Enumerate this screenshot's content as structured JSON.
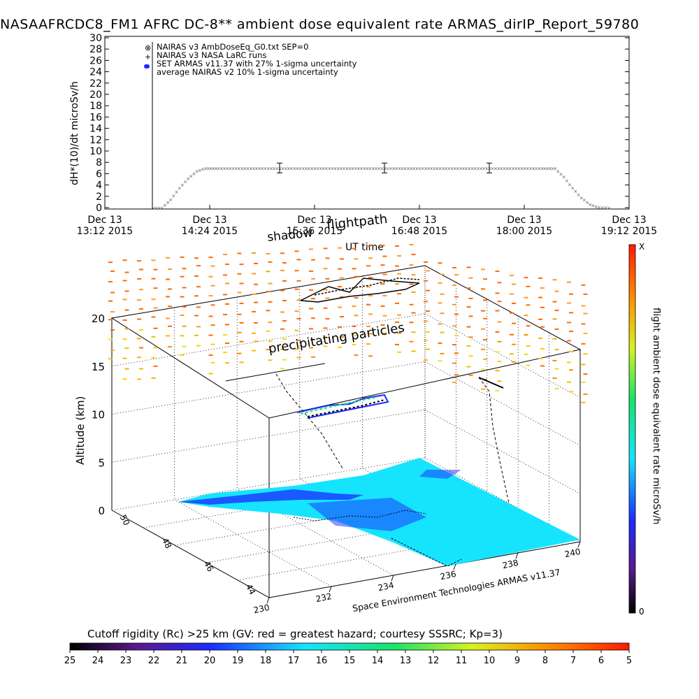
{
  "title": "NASAAFRCDC8_FM1 AFRC DC-8** ambient dose equivalent rate ARMAS_dirIP_Report_59780",
  "chart_data": [
    {
      "type": "line",
      "ylabel": "dH*(10)/dt microSv/h",
      "xlabel": "UT time",
      "ylim": [
        0,
        30
      ],
      "yticks": [
        "0",
        "2",
        "4",
        "6",
        "8",
        "10",
        "12",
        "14",
        "16",
        "18",
        "20",
        "22",
        "24",
        "26",
        "28",
        "30"
      ],
      "xticks": [
        {
          "line1": "Dec 13",
          "line2": "13:12 2015"
        },
        {
          "line1": "Dec 13",
          "line2": "14:24 2015"
        },
        {
          "line1": "Dec 13",
          "line2": "15:36 2015"
        },
        {
          "line1": "Dec 13",
          "line2": "16:48 2015"
        },
        {
          "line1": "Dec 13",
          "line2": "18:00 2015"
        },
        {
          "line1": "Dec 13",
          "line2": "19:12 2015"
        }
      ],
      "xlim_hours": [
        13.2,
        19.2
      ],
      "legend": [
        "NAIRAS v3 AmbDoseEq_G0.txt SEP=0",
        "NAIRAS v3 NASA LaRC runs",
        "SET ARMAS v11.37 with 27% 1-sigma uncertainty",
        "average NAIRAS v2 10% 1-sigma uncertainty"
      ],
      "legend_placement": "top-left",
      "series": [
        {
          "name": "NAIRAS v3 AmbDoseEq_G0.txt SEP=0",
          "x": [
            13.75,
            13.85,
            13.95,
            14.05,
            14.15,
            14.25,
            14.35,
            14.5,
            15.0,
            15.5,
            16.0,
            16.5,
            17.0,
            17.5,
            18.0,
            18.2,
            18.35,
            18.45,
            18.55,
            18.65,
            18.75,
            18.85,
            19.0
          ],
          "values": [
            0,
            0,
            1.5,
            3.5,
            5.2,
            6.5,
            7,
            7,
            7,
            7,
            7,
            7,
            7,
            7,
            7,
            7,
            7,
            5.5,
            3.5,
            1.8,
            0.6,
            0.1,
            0
          ]
        }
      ],
      "error_bars": [
        {
          "x": 15.2,
          "value": 7,
          "low": 6.5,
          "high": 7.5
        },
        {
          "x": 16.4,
          "value": 7,
          "low": 6.5,
          "high": 7.5
        },
        {
          "x": 17.6,
          "value": 7,
          "low": 6.5,
          "high": 7.5
        }
      ]
    },
    {
      "type": "scatter",
      "zlabel": "Altitude (km)",
      "zticks": [
        "0",
        "5",
        "10",
        "15",
        "20"
      ],
      "xticks": [
        "230",
        "232",
        "234",
        "236",
        "238",
        "240"
      ],
      "yticks": [
        "44",
        "46",
        "48",
        "50"
      ],
      "annotations": [
        "shadow",
        "flightpath",
        "precipitating particles",
        "Space Environment Technologies ARMAS v11.37"
      ],
      "colorbar_label": "flight ambient dose equivalent rate microSv/h",
      "colorbar_top": "X",
      "colorbar_bottom": "0"
    },
    {
      "type": "heatmap",
      "title": "Cutoff rigidity (Rc) >25 km (GV: red = greatest hazard; courtesy SSSRC; Kp=3)",
      "ticks": [
        "25",
        "24",
        "23",
        "22",
        "21",
        "20",
        "19",
        "18",
        "17",
        "16",
        "15",
        "14",
        "13",
        "12",
        "11",
        "10",
        "9",
        "8",
        "7",
        "6",
        "5"
      ]
    }
  ]
}
